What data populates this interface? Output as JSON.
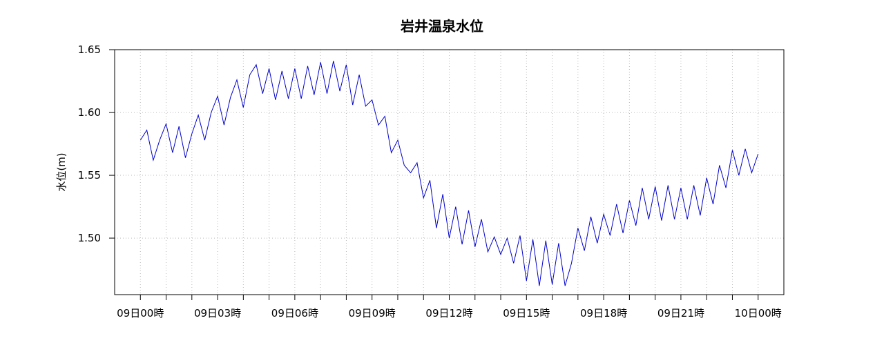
{
  "chart_data": {
    "type": "line",
    "title": "岩井温泉水位",
    "ylabel": "水位(m)",
    "xlabel": "",
    "ylim": [
      1.455,
      1.65
    ],
    "y_ticks": [
      "1.50",
      "1.55",
      "1.60",
      "1.65"
    ],
    "y_tick_values": [
      1.5,
      1.55,
      1.6,
      1.65
    ],
    "x_tick_labels": [
      "09日00時",
      "09日03時",
      "09日06時",
      "09日09時",
      "09日12時",
      "09日15時",
      "09日18時",
      "09日21時",
      "10日00時"
    ],
    "x_tick_hours": [
      0,
      3,
      6,
      9,
      12,
      15,
      18,
      21,
      24
    ],
    "x_minor_hours": [
      1,
      2,
      4,
      5,
      7,
      8,
      10,
      11,
      13,
      14,
      16,
      17,
      19,
      20,
      22,
      23
    ],
    "xlim_hours": [
      -1,
      25
    ],
    "grid": true,
    "line_color": "#0000cc",
    "series": [
      {
        "x_hours": [
          0.0,
          0.25,
          0.5,
          0.75,
          1.0,
          1.25,
          1.5,
          1.75,
          2.0,
          2.25,
          2.5,
          2.75,
          3.0,
          3.25,
          3.5,
          3.75,
          4.0,
          4.25,
          4.5,
          4.75,
          5.0,
          5.25,
          5.5,
          5.75,
          6.0,
          6.25,
          6.5,
          6.75,
          7.0,
          7.25,
          7.5,
          7.75,
          8.0,
          8.25,
          8.5,
          8.75,
          9.0,
          9.25,
          9.5,
          9.75,
          10.0,
          10.25,
          10.5,
          10.75,
          11.0,
          11.25,
          11.5,
          11.75,
          12.0,
          12.25,
          12.5,
          12.75,
          13.0,
          13.25,
          13.5,
          13.75,
          14.0,
          14.25,
          14.5,
          14.75,
          15.0,
          15.25,
          15.5,
          15.75,
          16.0,
          16.25,
          16.5,
          16.75,
          17.0,
          17.25,
          17.5,
          17.75,
          18.0,
          18.25,
          18.5,
          18.75,
          19.0,
          19.25,
          19.5,
          19.75,
          20.0,
          20.25,
          20.5,
          20.75,
          21.0,
          21.25,
          21.5,
          21.75,
          22.0,
          22.25,
          22.5,
          22.75,
          23.0,
          23.25,
          23.5,
          23.75,
          24.0
        ],
        "values": [
          1.578,
          1.586,
          1.562,
          1.578,
          1.591,
          1.568,
          1.589,
          1.564,
          1.583,
          1.598,
          1.578,
          1.6,
          1.613,
          1.59,
          1.612,
          1.626,
          1.604,
          1.63,
          1.638,
          1.615,
          1.635,
          1.61,
          1.633,
          1.611,
          1.635,
          1.611,
          1.637,
          1.614,
          1.64,
          1.615,
          1.641,
          1.617,
          1.638,
          1.606,
          1.63,
          1.605,
          1.61,
          1.59,
          1.597,
          1.568,
          1.578,
          1.558,
          1.552,
          1.56,
          1.532,
          1.546,
          1.508,
          1.535,
          1.5,
          1.525,
          1.495,
          1.522,
          1.493,
          1.515,
          1.489,
          1.501,
          1.487,
          1.5,
          1.48,
          1.502,
          1.466,
          1.499,
          1.462,
          1.498,
          1.463,
          1.496,
          1.462,
          1.48,
          1.508,
          1.49,
          1.517,
          1.496,
          1.519,
          1.502,
          1.527,
          1.504,
          1.53,
          1.51,
          1.54,
          1.515,
          1.541,
          1.514,
          1.542,
          1.515,
          1.54,
          1.515,
          1.542,
          1.518,
          1.548,
          1.527,
          1.558,
          1.54,
          1.57,
          1.55,
          1.571,
          1.552,
          1.567
        ]
      }
    ]
  }
}
